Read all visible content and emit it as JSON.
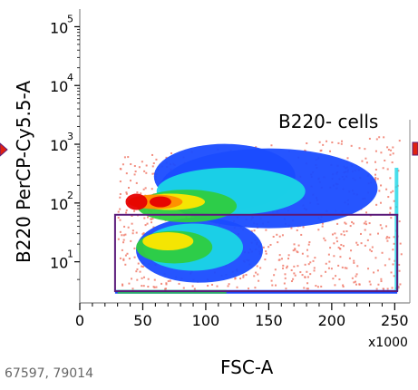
{
  "chart_data": {
    "type": "heatmap",
    "subtype": "flow-cytometry density plot",
    "xlabel": "FSC-A",
    "ylabel": "B220 PerCP-Cy5.5-A",
    "x_multiplier": "x1000",
    "xlim": [
      0,
      262
    ],
    "x_ticks": [
      "0",
      "50",
      "100",
      "150",
      "200",
      "250"
    ],
    "ylim_log": [
      0.3,
      5.3
    ],
    "y_ticks": [
      {
        "base": "10",
        "exp": "1"
      },
      {
        "base": "10",
        "exp": "2"
      },
      {
        "base": "10",
        "exp": "3"
      },
      {
        "base": "10",
        "exp": "4"
      },
      {
        "base": "10",
        "exp": "5"
      }
    ],
    "gate": {
      "name": "B220- cells",
      "x_range": [
        28,
        252
      ],
      "y_range_log": [
        0.5,
        1.8
      ]
    },
    "event_counts": "67597, 79014",
    "density_colors": [
      "#e60000",
      "#ff8c00",
      "#ffe600",
      "#2ecc40",
      "#1ad6e6",
      "#1a4cff",
      "#f07a6a"
    ],
    "gate_color": "#5a1a7a",
    "marker_color": "#e02010"
  }
}
